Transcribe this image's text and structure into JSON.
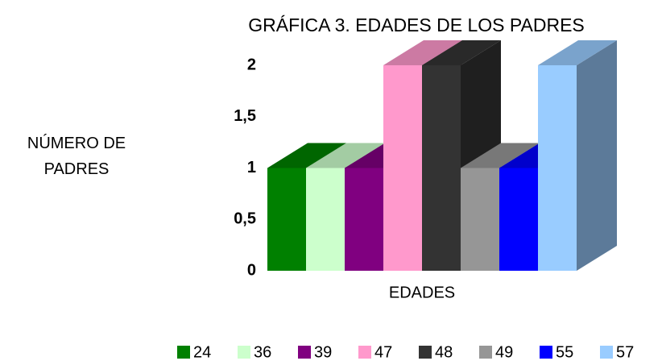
{
  "chart_data": {
    "type": "bar3d",
    "title": "GRÁFICA 3. EDADES DE LOS PADRES",
    "y_label": "NÚMERO DE PADRES",
    "x_label": "EDADES",
    "ylim": [
      0,
      2
    ],
    "yticks": [
      0,
      {
        "value": 0.5,
        "label": "0,5"
      },
      1,
      {
        "value": 1.5,
        "label": "1,5"
      },
      2
    ],
    "grid": false,
    "legend": "bottom",
    "series": [
      {
        "name": "24",
        "color": "#008000",
        "values": [
          1
        ]
      },
      {
        "name": "36",
        "color": "#ccffcc",
        "values": [
          1
        ]
      },
      {
        "name": "39",
        "color": "#800080",
        "values": [
          1
        ]
      },
      {
        "name": "47",
        "color": "#ff99cc",
        "values": [
          2
        ]
      },
      {
        "name": "48",
        "color": "#333333",
        "values": [
          2
        ]
      },
      {
        "name": "49",
        "color": "#969696",
        "values": [
          1
        ]
      },
      {
        "name": "55",
        "color": "#0000ff",
        "values": [
          1
        ]
      },
      {
        "name": "57",
        "color": "#99ccff",
        "values": [
          2
        ]
      }
    ]
  }
}
